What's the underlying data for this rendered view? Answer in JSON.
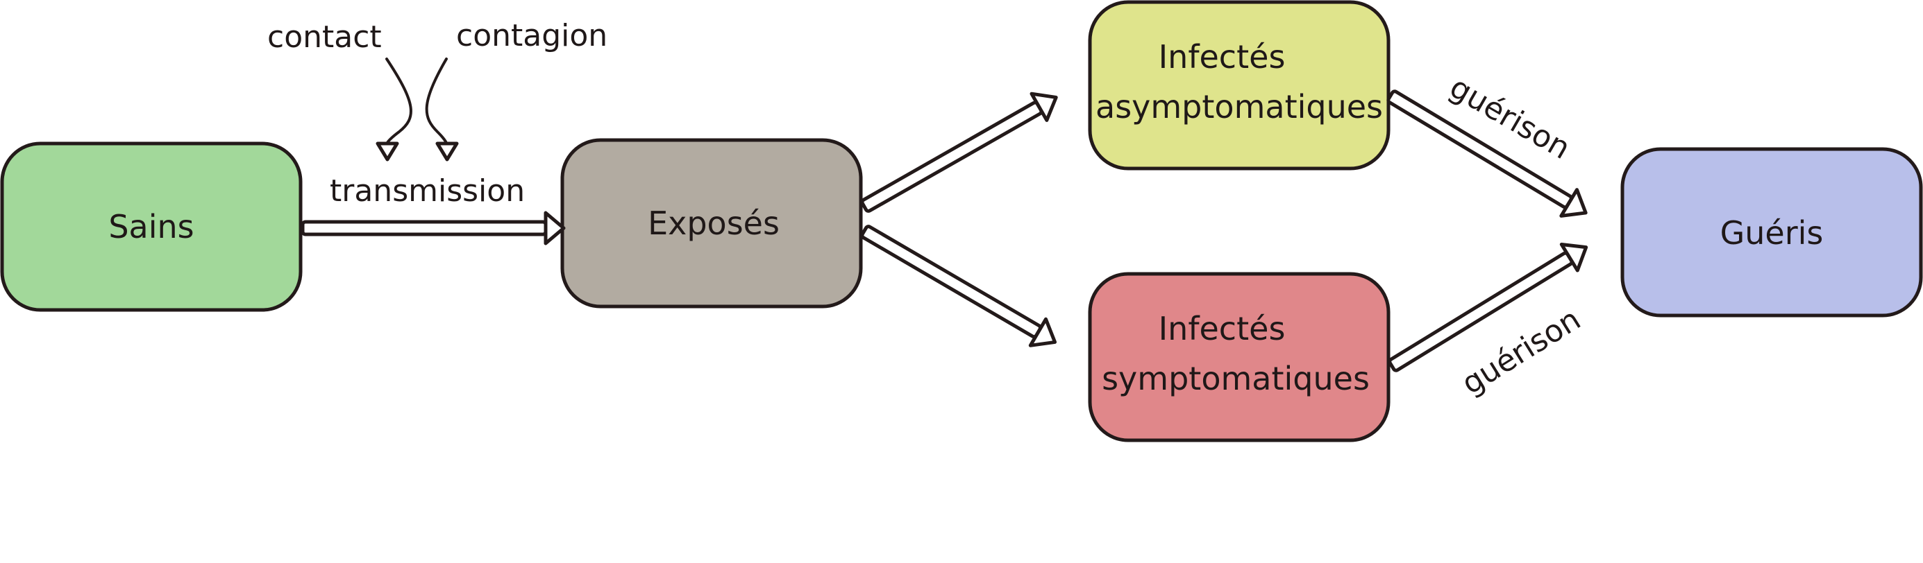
{
  "nodes": {
    "sains": {
      "label": "Sains",
      "color": "#a2d89a"
    },
    "exposes": {
      "label": "Exposés",
      "color": "#b2aba1"
    },
    "asymptomatiques": {
      "line1": "Infectés",
      "line2": "asymptomatiques",
      "color": "#dfe48c"
    },
    "symptomatiques": {
      "line1": "Infectés",
      "line2": "symptomatiques",
      "color": "#e0878a"
    },
    "gueris": {
      "label": "Guéris",
      "color": "#b8bfea"
    }
  },
  "edges": {
    "transmission": "transmission",
    "contact": "contact",
    "contagion": "contagion",
    "guerison_top": "guérison",
    "guerison_bottom": "guérison"
  },
  "styles": {
    "stroke": "#231a1a"
  }
}
